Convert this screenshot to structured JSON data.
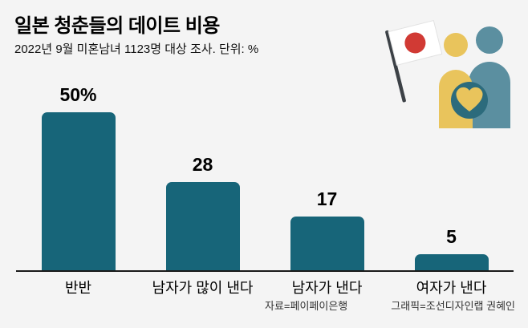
{
  "title": "일본 청춘들의 데이트 비용",
  "subtitle": "2022년 9월 미혼남녀 1123명 대상 조사. 단위: %",
  "footer": {
    "source": "자료=페이페이은행",
    "credit": "그래픽=조선디자인랩 권혜인"
  },
  "chart_data": {
    "type": "bar",
    "title": "일본 청춘들의 데이트 비용",
    "categories": [
      "반반",
      "남자가 많이 낸다",
      "남자가 낸다",
      "여자가 낸다"
    ],
    "values": [
      50,
      28,
      17,
      5
    ],
    "value_labels": [
      "50%",
      "28",
      "17",
      "5"
    ],
    "unit": "%",
    "ylim": [
      0,
      50
    ],
    "grid": false,
    "legend": false,
    "bar_color": "#176579"
  },
  "icons": {
    "japan_flag": "japan-flag-icon",
    "person_left": "person-yellow-icon",
    "person_right": "person-teal-icon",
    "heart": "heart-icon"
  },
  "colors": {
    "background": "#f4f4f4",
    "bar": "#176579",
    "axis": "#1a1a1a",
    "flag_white": "#ffffff",
    "flag_red": "#d13a34",
    "pole": "#3c4146",
    "person_left": "#e9c45c",
    "person_right": "#5b8fa0",
    "heart_circle": "#2c6b7c",
    "heart": "#e9c45c"
  }
}
